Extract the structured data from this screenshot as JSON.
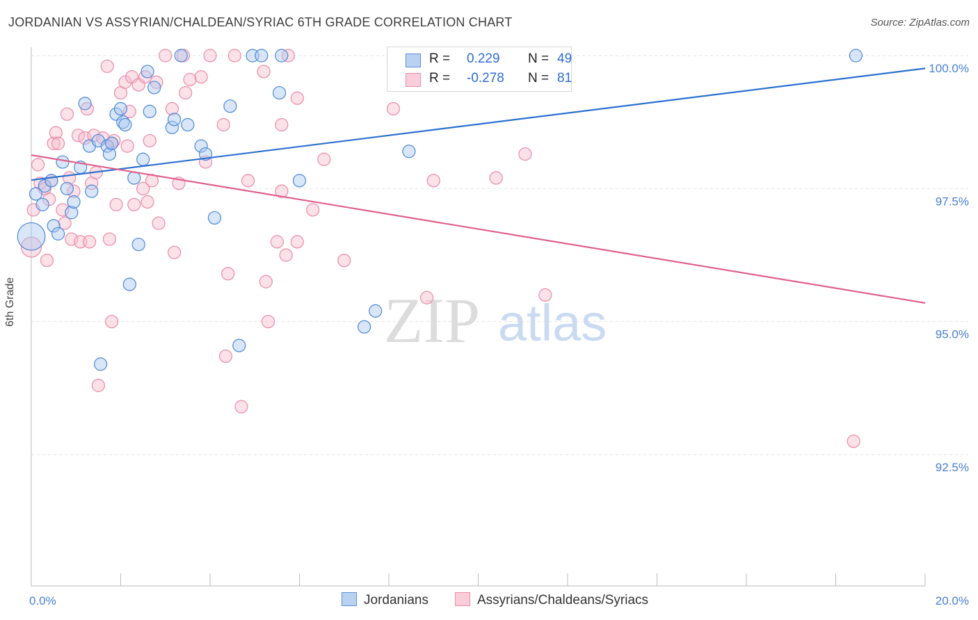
{
  "title": "JORDANIAN VS ASSYRIAN/CHALDEAN/SYRIAC 6TH GRADE CORRELATION CHART",
  "source": "Source: ZipAtlas.com",
  "watermark": {
    "zip": "ZIP",
    "atlas": "atlas"
  },
  "legend_top": [
    {
      "r_label": "R =",
      "r_value": "0.229",
      "n_label": "N =",
      "n_value": "49"
    },
    {
      "r_label": "R =",
      "r_value": "-0.278",
      "n_label": "N =",
      "n_value": "81"
    }
  ],
  "legend_bottom": [
    "Jordanians",
    "Assyrians/Chaldeans/Syriacs"
  ],
  "colors": {
    "blue": "#4b87d8",
    "blue_fill": "#aac8ef",
    "blue_line": "#2b6fd1",
    "pink": "#e98aa8",
    "pink_fill": "#f6bccd",
    "pink_line": "#e0608c",
    "tick_label": "#4a7fd0",
    "grid": "#e2e2e2"
  },
  "chart_data": {
    "type": "scatter",
    "title": "JORDANIAN VS ASSYRIAN/CHALDEAN/SYRIAC 6TH GRADE CORRELATION CHART",
    "xlabel": "",
    "ylabel": "6th Grade",
    "xlim": [
      0.0,
      20.0
    ],
    "ylim": [
      90.0,
      100.2
    ],
    "x_tick_labels": [
      "0.0%",
      "20.0%"
    ],
    "y_ticks": [
      92.5,
      95.0,
      97.5,
      100.0
    ],
    "y_tick_labels": [
      "92.5%",
      "95.0%",
      "97.5%",
      "100.0%"
    ],
    "grid": true,
    "legend_position": "top-center",
    "series": [
      {
        "name": "Jordanians",
        "r": 0.229,
        "n": 49,
        "trend": [
          [
            0.0,
            97.66
          ],
          [
            20.0,
            99.76
          ]
        ],
        "points": [
          [
            0.0,
            96.6,
            2.2
          ],
          [
            0.1,
            97.4,
            1
          ],
          [
            0.25,
            97.2,
            1
          ],
          [
            0.3,
            97.55,
            1
          ],
          [
            0.45,
            97.65,
            1
          ],
          [
            0.5,
            96.8,
            1
          ],
          [
            0.6,
            96.65,
            1
          ],
          [
            0.7,
            98.0,
            1
          ],
          [
            0.8,
            97.5,
            1
          ],
          [
            0.9,
            97.05,
            1
          ],
          [
            0.95,
            97.25,
            1
          ],
          [
            1.1,
            97.9,
            1
          ],
          [
            1.2,
            99.1,
            1
          ],
          [
            1.3,
            98.3,
            1
          ],
          [
            1.35,
            97.45,
            1
          ],
          [
            1.5,
            98.4,
            1
          ],
          [
            1.55,
            94.2,
            1
          ],
          [
            1.7,
            98.3,
            1
          ],
          [
            1.75,
            98.15,
            1
          ],
          [
            1.8,
            98.35,
            1
          ],
          [
            1.9,
            98.9,
            1
          ],
          [
            2.0,
            99.0,
            1
          ],
          [
            2.05,
            98.75,
            1
          ],
          [
            2.1,
            98.7,
            1
          ],
          [
            2.2,
            95.7,
            1
          ],
          [
            2.3,
            97.7,
            1
          ],
          [
            2.4,
            96.45,
            1
          ],
          [
            2.5,
            98.05,
            1
          ],
          [
            2.6,
            99.7,
            1
          ],
          [
            2.65,
            98.95,
            1
          ],
          [
            2.75,
            99.4,
            1
          ],
          [
            3.15,
            98.65,
            1
          ],
          [
            3.2,
            98.8,
            1
          ],
          [
            3.35,
            100.0,
            1
          ],
          [
            3.5,
            98.7,
            1
          ],
          [
            3.8,
            98.3,
            1
          ],
          [
            3.9,
            98.15,
            1
          ],
          [
            4.1,
            96.95,
            1
          ],
          [
            4.45,
            99.05,
            1
          ],
          [
            4.65,
            94.55,
            1
          ],
          [
            4.95,
            100.0,
            1
          ],
          [
            5.15,
            100.0,
            1
          ],
          [
            5.55,
            99.3,
            1
          ],
          [
            5.6,
            100.0,
            1
          ],
          [
            6.0,
            97.65,
            1
          ],
          [
            7.45,
            94.9,
            1
          ],
          [
            7.7,
            95.2,
            1
          ],
          [
            8.45,
            98.2,
            1
          ],
          [
            18.45,
            100.0,
            1
          ]
        ]
      },
      {
        "name": "Assyrians/Chaldeans/Syriacs",
        "r": -0.278,
        "n": 81,
        "trend": [
          [
            0.0,
            98.13
          ],
          [
            20.0,
            95.35
          ]
        ],
        "points": [
          [
            0.0,
            96.4,
            1.6
          ],
          [
            0.05,
            97.1,
            1
          ],
          [
            0.15,
            97.95,
            1
          ],
          [
            0.2,
            97.6,
            1
          ],
          [
            0.3,
            97.5,
            1
          ],
          [
            0.35,
            96.15,
            1
          ],
          [
            0.4,
            97.3,
            1
          ],
          [
            0.45,
            97.65,
            1
          ],
          [
            0.5,
            98.35,
            1
          ],
          [
            0.55,
            98.55,
            1
          ],
          [
            0.6,
            98.35,
            1
          ],
          [
            0.7,
            97.1,
            1
          ],
          [
            0.75,
            96.85,
            1
          ],
          [
            0.8,
            98.9,
            1
          ],
          [
            0.85,
            97.7,
            1
          ],
          [
            0.9,
            96.55,
            1
          ],
          [
            0.95,
            97.45,
            1
          ],
          [
            1.05,
            98.5,
            1
          ],
          [
            1.1,
            96.5,
            1
          ],
          [
            1.2,
            98.45,
            1
          ],
          [
            1.25,
            99.0,
            1
          ],
          [
            1.3,
            96.5,
            1
          ],
          [
            1.35,
            97.6,
            1
          ],
          [
            1.4,
            98.5,
            1
          ],
          [
            1.45,
            97.8,
            1
          ],
          [
            1.5,
            93.8,
            1
          ],
          [
            1.6,
            98.45,
            1
          ],
          [
            1.7,
            99.8,
            1
          ],
          [
            1.75,
            96.55,
            1
          ],
          [
            1.8,
            98.35,
            1
          ],
          [
            1.8,
            95.0,
            1
          ],
          [
            1.85,
            98.4,
            1
          ],
          [
            1.9,
            97.2,
            1
          ],
          [
            2.0,
            99.3,
            1
          ],
          [
            2.1,
            99.5,
            1
          ],
          [
            2.15,
            98.3,
            1
          ],
          [
            2.2,
            98.95,
            1
          ],
          [
            2.25,
            99.6,
            1
          ],
          [
            2.3,
            97.2,
            1
          ],
          [
            2.4,
            99.45,
            1
          ],
          [
            2.5,
            97.5,
            1
          ],
          [
            2.55,
            99.6,
            1
          ],
          [
            2.6,
            97.25,
            1
          ],
          [
            2.65,
            98.4,
            1
          ],
          [
            2.7,
            97.65,
            1
          ],
          [
            2.8,
            99.5,
            1
          ],
          [
            2.85,
            96.85,
            1
          ],
          [
            3.0,
            100.0,
            1
          ],
          [
            3.15,
            99.0,
            1
          ],
          [
            3.2,
            96.3,
            1
          ],
          [
            3.3,
            97.6,
            1
          ],
          [
            3.4,
            100.0,
            1
          ],
          [
            3.45,
            99.3,
            1
          ],
          [
            3.55,
            99.55,
            1
          ],
          [
            3.8,
            99.6,
            1
          ],
          [
            3.9,
            98.0,
            1
          ],
          [
            4.0,
            100.0,
            1
          ],
          [
            4.3,
            98.7,
            1
          ],
          [
            4.35,
            94.35,
            1
          ],
          [
            4.4,
            95.9,
            1
          ],
          [
            4.55,
            100.0,
            1
          ],
          [
            4.7,
            93.4,
            1
          ],
          [
            4.85,
            97.65,
            1
          ],
          [
            5.2,
            99.7,
            1
          ],
          [
            5.25,
            95.75,
            1
          ],
          [
            5.3,
            95.0,
            1
          ],
          [
            5.5,
            96.5,
            1
          ],
          [
            5.6,
            97.45,
            1
          ],
          [
            5.6,
            98.7,
            1
          ],
          [
            5.7,
            96.25,
            1
          ],
          [
            5.75,
            100.0,
            1
          ],
          [
            5.95,
            99.2,
            1
          ],
          [
            5.95,
            96.5,
            1
          ],
          [
            6.3,
            97.1,
            1
          ],
          [
            6.55,
            98.05,
            1
          ],
          [
            7.0,
            96.15,
            1
          ],
          [
            8.1,
            99.0,
            1
          ],
          [
            8.85,
            95.45,
            1
          ],
          [
            9.0,
            97.65,
            1
          ],
          [
            10.4,
            97.7,
            1
          ],
          [
            11.05,
            98.15,
            1
          ],
          [
            11.5,
            95.5,
            1
          ],
          [
            18.4,
            92.75,
            1
          ]
        ]
      }
    ]
  }
}
